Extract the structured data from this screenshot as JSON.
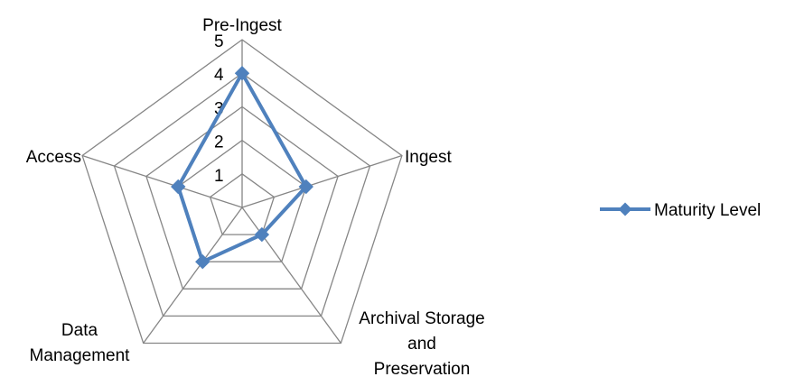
{
  "chart_data": {
    "type": "radar",
    "title": "",
    "categories": [
      [
        "Pre-Ingest"
      ],
      [
        "Ingest"
      ],
      [
        "Archival Storage",
        "and",
        "Preservation"
      ],
      [
        "Data",
        "Management"
      ],
      [
        "Access"
      ]
    ],
    "series": [
      {
        "name": "Maturity Level",
        "values": [
          4,
          2,
          1,
          2,
          2
        ],
        "color": "#4F81BD"
      }
    ],
    "axis": {
      "min": 0,
      "max": 5,
      "ticks": [
        1,
        2,
        3,
        4,
        5
      ]
    },
    "grid": true,
    "grid_color": "#868686",
    "legend": {
      "position": "right"
    }
  }
}
